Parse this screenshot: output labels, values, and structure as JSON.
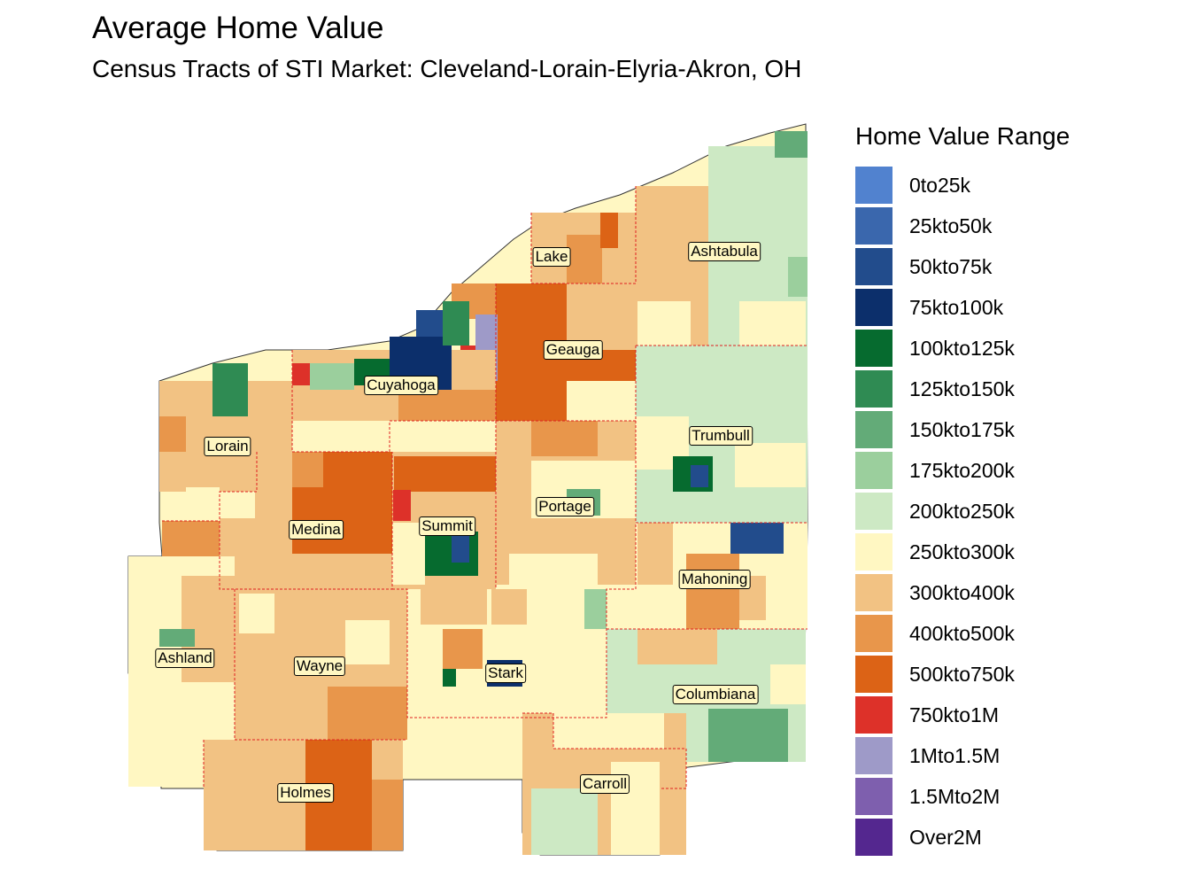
{
  "title": "Average Home Value",
  "subtitle": "Census Tracts of STI Market: Cleveland-Lorain-Elyria-Akron, OH",
  "legend": {
    "title": "Home Value Range",
    "items": [
      {
        "label": "0to25k",
        "color": "#5182cf"
      },
      {
        "label": "25kto50k",
        "color": "#3a67ad"
      },
      {
        "label": "50kto75k",
        "color": "#224c8c"
      },
      {
        "label": "75kto100k",
        "color": "#0c2f6b"
      },
      {
        "label": "100kto125k",
        "color": "#066b2f"
      },
      {
        "label": "125kto150k",
        "color": "#2f8b53"
      },
      {
        "label": "150kto175k",
        "color": "#63ab78"
      },
      {
        "label": "175kto200k",
        "color": "#9bcf9d"
      },
      {
        "label": "200kto250k",
        "color": "#cde9c4"
      },
      {
        "label": "250kto300k",
        "color": "#fff7c2"
      },
      {
        "label": "300kto400k",
        "color": "#f2c283"
      },
      {
        "label": "400kto500k",
        "color": "#e8964b"
      },
      {
        "label": "500kto750k",
        "color": "#dc6316"
      },
      {
        "label": "750kto1M",
        "color": "#dd3129"
      },
      {
        "label": "1Mto1.5M",
        "color": "#9e9ac8"
      },
      {
        "label": "1.5Mto2M",
        "color": "#7e5fae"
      },
      {
        "label": "Over2M",
        "color": "#54278f"
      }
    ]
  },
  "counties": [
    "Lake",
    "Ashtabula",
    "Geauga",
    "Cuyahoga",
    "Lorain",
    "Trumbull",
    "Portage",
    "Summit",
    "Medina",
    "Mahoning",
    "Ashland",
    "Wayne",
    "Stark",
    "Columbiana",
    "Holmes",
    "Carroll"
  ]
}
